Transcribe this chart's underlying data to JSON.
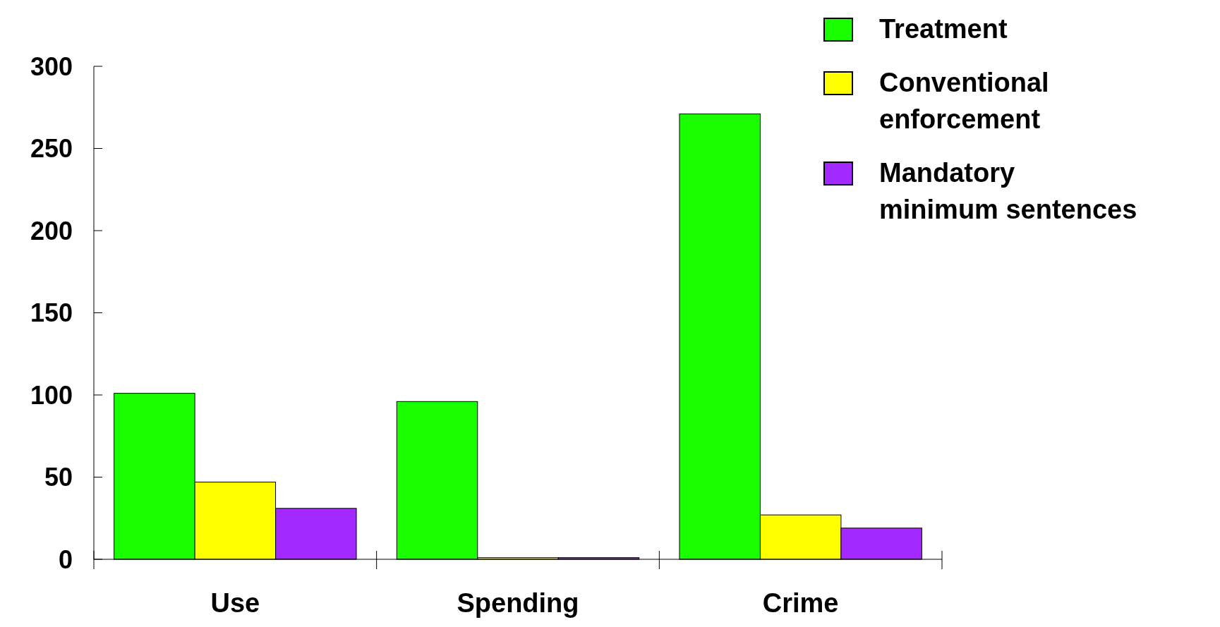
{
  "chart_data": {
    "type": "bar",
    "categories": [
      "Use",
      "Spending",
      "Crime"
    ],
    "series": [
      {
        "name": "Treatment",
        "color": "#19ff00",
        "values": [
          101,
          96,
          271
        ]
      },
      {
        "name": "Conventional enforcement",
        "color": "#ffff00",
        "values": [
          47,
          1,
          27
        ]
      },
      {
        "name": "Mandatory minimum sentences",
        "color": "#a229ff",
        "values": [
          31,
          1,
          19
        ]
      }
    ],
    "ylim": [
      0,
      300
    ],
    "yticks": [
      0,
      50,
      100,
      150,
      200,
      250,
      300
    ],
    "grid": false,
    "legend": "top right"
  }
}
